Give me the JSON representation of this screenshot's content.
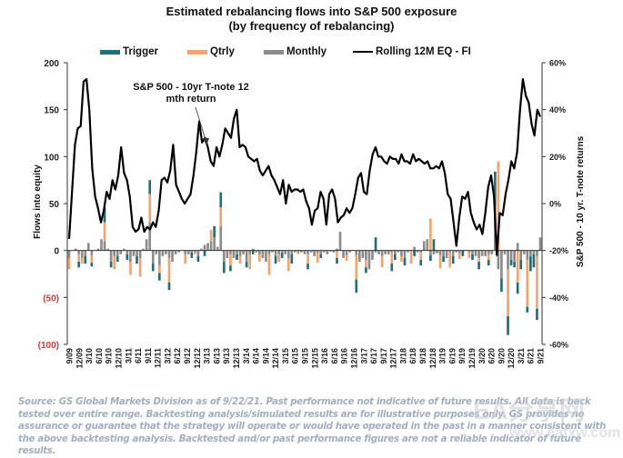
{
  "chart_data": {
    "type": "bar",
    "title": "Estimated rebalancing flows into S&P 500 exposure",
    "subtitle": "(by frequency of rebalancing)",
    "ylabel": "Flows into equity",
    "y2label": "S&P 500 - 10 yr. T-note returns",
    "ylim": [
      -100,
      200
    ],
    "y2lim": [
      -0.6,
      0.6
    ],
    "yticks": [
      "200",
      "150",
      "100",
      "50",
      "0",
      "(50)",
      "(100)"
    ],
    "ytick_values": [
      200,
      150,
      100,
      50,
      0,
      -50,
      -100
    ],
    "y2ticks": [
      "60%",
      "40%",
      "20%",
      "0%",
      "-20%",
      "-40%",
      "-60%"
    ],
    "y2tick_values": [
      0.6,
      0.4,
      0.2,
      0,
      -0.2,
      -0.4,
      -0.6
    ],
    "negative_tick_color": "#d9383a",
    "legend_position": "top",
    "legend": [
      {
        "name": "Trigger",
        "color": "#1f6f78",
        "kind": "bar"
      },
      {
        "name": "Qtrly",
        "color": "#f4a46b",
        "kind": "bar"
      },
      {
        "name": "Monthly",
        "color": "#8c8c8c",
        "kind": "bar"
      },
      {
        "name": "Rolling 12M EQ - FI",
        "color": "#000000",
        "kind": "line"
      }
    ],
    "annotation": {
      "text_line1": "S&P 500 - 10yr T-note 12",
      "text_line2": "mth return"
    },
    "xtick_labels": [
      "9/09",
      "12/09",
      "3/10",
      "6/10",
      "9/10",
      "12/10",
      "3/11",
      "6/11",
      "9/11",
      "12/11",
      "3/12",
      "6/12",
      "9/12",
      "12/12",
      "3/13",
      "6/13",
      "9/13",
      "12/13",
      "3/14",
      "6/14",
      "9/14",
      "12/14",
      "3/15",
      "6/15",
      "9/15",
      "12/15",
      "3/16",
      "6/16",
      "9/16",
      "12/16",
      "3/17",
      "6/17",
      "9/17",
      "12/17",
      "3/18",
      "6/18",
      "9/18",
      "12/18",
      "3/19",
      "6/19",
      "9/19",
      "12/19",
      "3/20",
      "6/20",
      "9/20",
      "12/20",
      "3/21",
      "6/21",
      "9/21"
    ],
    "bars_monthly_note": "stacked monthly bars, 145 months from 9/09 to 9/21; values are flows into equity",
    "series": [
      {
        "name": "Monthly",
        "values": [
          -8,
          0,
          2,
          -4,
          -8,
          -6,
          8,
          -5,
          0,
          2,
          12,
          10,
          2,
          -12,
          -6,
          -6,
          -4,
          2,
          -4,
          -12,
          -6,
          -6,
          -8,
          2,
          12,
          30,
          -14,
          -4,
          -16,
          -6,
          -4,
          -8,
          -12,
          -4,
          -2,
          0,
          -4,
          -4,
          -2,
          -2,
          -6,
          2,
          6,
          8,
          10,
          14,
          4,
          26,
          -12,
          -8,
          -4,
          -8,
          -4,
          -6,
          -4,
          -12,
          -4,
          2,
          -2,
          -4,
          -8,
          -12,
          -4,
          -2,
          -6,
          -4,
          -2,
          -4,
          -8,
          -4,
          -2,
          -2,
          -2,
          -4,
          -4,
          -2,
          -6,
          -3,
          -4,
          -2,
          -4,
          -1,
          -2,
          2,
          20,
          -8,
          -5,
          -2,
          0,
          -5,
          -12,
          -8,
          -10,
          -20,
          -10,
          -2,
          -4,
          -6,
          -4,
          -4,
          -2,
          -4,
          -2,
          -6,
          -8,
          -2,
          0,
          4,
          -2,
          -2,
          10,
          12,
          -5,
          -4,
          -3,
          -5,
          -6,
          -8,
          -2,
          -6,
          -2,
          -3,
          0,
          0,
          -2,
          -4,
          -6,
          -8,
          -6,
          -6,
          -4,
          -4,
          48,
          -20,
          -30,
          -4,
          -20,
          -10,
          -12,
          8,
          -10,
          -4,
          -10,
          -6,
          -4,
          -6,
          14
        ],
        "color": "#8c8c8c"
      },
      {
        "name": "Qtrly",
        "values": [
          -12,
          0,
          0,
          -8,
          -6,
          0,
          0,
          -8,
          0,
          0,
          0,
          20,
          0,
          0,
          -14,
          0,
          0,
          0,
          0,
          -14,
          0,
          0,
          -20,
          0,
          0,
          30,
          0,
          0,
          -8,
          0,
          0,
          -26,
          0,
          0,
          0,
          0,
          -10,
          0,
          0,
          -2,
          0,
          0,
          0,
          0,
          12,
          0,
          0,
          20,
          0,
          0,
          -12,
          0,
          0,
          -8,
          0,
          0,
          -16,
          0,
          0,
          -8,
          0,
          0,
          -22,
          0,
          0,
          -8,
          0,
          0,
          -14,
          0,
          0,
          -2,
          0,
          0,
          -10,
          0,
          0,
          -10,
          0,
          0,
          0,
          0,
          0,
          -8,
          0,
          0,
          -6,
          0,
          0,
          -26,
          0,
          0,
          -8,
          0,
          0,
          0,
          0,
          -12,
          0,
          0,
          -12,
          0,
          0,
          -6,
          0,
          0,
          -14,
          0,
          0,
          -8,
          0,
          0,
          34,
          0,
          0,
          -14,
          0,
          0,
          -16,
          0,
          0,
          -6,
          0,
          0,
          -6,
          0,
          0,
          -4,
          0,
          0,
          -6,
          0,
          0,
          95,
          0,
          0,
          -50,
          0,
          0,
          -34,
          0,
          0,
          -50,
          0,
          0,
          -56,
          0,
          0,
          -8,
          0,
          0
        ],
        "color": "#f4a46b"
      },
      {
        "name": "Trigger",
        "values": [
          0,
          0,
          0,
          -6,
          0,
          -8,
          0,
          -4,
          0,
          0,
          0,
          16,
          0,
          -6,
          0,
          -6,
          0,
          0,
          -6,
          0,
          0,
          -8,
          0,
          0,
          0,
          15,
          -8,
          0,
          -8,
          0,
          0,
          -8,
          0,
          0,
          0,
          0,
          0,
          0,
          -6,
          0,
          -6,
          0,
          -6,
          0,
          0,
          12,
          0,
          16,
          -12,
          0,
          -6,
          0,
          -6,
          0,
          0,
          -6,
          0,
          -4,
          0,
          0,
          0,
          0,
          0,
          0,
          -8,
          0,
          -6,
          0,
          0,
          -10,
          0,
          0,
          0,
          0,
          -6,
          0,
          0,
          0,
          -4,
          0,
          0,
          0,
          0,
          -6,
          0,
          0,
          0,
          0,
          0,
          -14,
          0,
          0,
          -6,
          0,
          0,
          14,
          0,
          0,
          0,
          0,
          -8,
          -6,
          0,
          0,
          -8,
          0,
          0,
          -6,
          0,
          -6,
          0,
          0,
          -6,
          12,
          0,
          0,
          -6,
          0,
          0,
          -8,
          0,
          0,
          -6,
          0,
          0,
          -6,
          0,
          -8,
          0,
          0,
          -6,
          0,
          36,
          0,
          -14,
          0,
          -20,
          -6,
          -6,
          -12,
          -10,
          0,
          -6,
          -16,
          -14,
          -12,
          0,
          -6,
          0,
          0
        ],
        "color": "#1f6f78"
      },
      {
        "name": "Rolling 12M EQ - FI",
        "axis": "right",
        "color": "#000000",
        "values": [
          -0.15,
          0.05,
          0.25,
          0.32,
          0.33,
          0.52,
          0.53,
          0.4,
          0.15,
          0.03,
          -0.02,
          -0.08,
          -0.03,
          0.05,
          0.02,
          0.1,
          0.06,
          0.12,
          0.24,
          0.13,
          0.1,
          0.03,
          -0.1,
          -0.12,
          -0.11,
          -0.06,
          -0.12,
          -0.1,
          -0.11,
          -0.08,
          -0.1,
          -0.03,
          0.1,
          0.11,
          0.09,
          0.14,
          0.25,
          0.08,
          0.05,
          0.02,
          0.0,
          0.02,
          0.04,
          0.12,
          0.22,
          0.35,
          0.26,
          0.28,
          0.24,
          0.18,
          0.16,
          0.24,
          0.2,
          0.25,
          0.32,
          0.3,
          0.28,
          0.36,
          0.4,
          0.24,
          0.25,
          0.24,
          0.2,
          0.19,
          0.18,
          0.19,
          0.14,
          0.12,
          0.14,
          0.16,
          0.12,
          0.1,
          0.07,
          0.04,
          0.1,
          0.0,
          0.08,
          0.05,
          0.06,
          0.06,
          0.05,
          0.06,
          0.01,
          -0.02,
          -0.09,
          -0.03,
          -0.02,
          0.05,
          0.02,
          -0.09,
          0.04,
          0.06,
          0.02,
          -0.08,
          -0.06,
          -0.05,
          -0.02,
          -0.04,
          -0.02,
          0.04,
          0.11,
          0.13,
          0.05,
          0.04,
          0.14,
          0.21,
          0.24,
          0.2,
          0.2,
          0.18,
          0.17,
          0.2,
          0.19,
          0.19,
          0.17,
          0.21,
          0.18,
          0.18,
          0.17,
          0.21,
          0.18,
          0.19,
          0.18,
          0.17,
          0.18,
          0.15,
          0.15,
          0.16,
          0.15,
          0.18,
          0.13,
          0.04,
          0.02,
          -0.08,
          -0.18,
          -0.06,
          0.03,
          0.02,
          0.05,
          -0.04,
          -0.08,
          -0.11,
          -0.09,
          -0.13,
          -0.04,
          0.07,
          0.12,
          0.03,
          -0.22,
          -0.04,
          -0.05,
          0.04,
          0.1,
          0.18,
          0.15,
          0.22,
          0.4,
          0.53,
          0.46,
          0.43,
          0.34,
          0.29,
          0.4,
          0.37
        ]
      }
    ]
  },
  "footnote": "Source: GS Global Markets Division as of 9/22/21. Past performance not indicative of future results. All data is back tested over entire range. Backtesting analysis/simulated results are for illustrative purposes only. GS provides no assurance or guarantee that the strategy will operate or would have operated in the past in a manner consistent with the above backtesting analysis. Backtested and/or past performance figures are not a reliable indicator of future results.",
  "watermark": {
    "line1": "EA分享网",
    "line2": "www.eafxw.com"
  }
}
